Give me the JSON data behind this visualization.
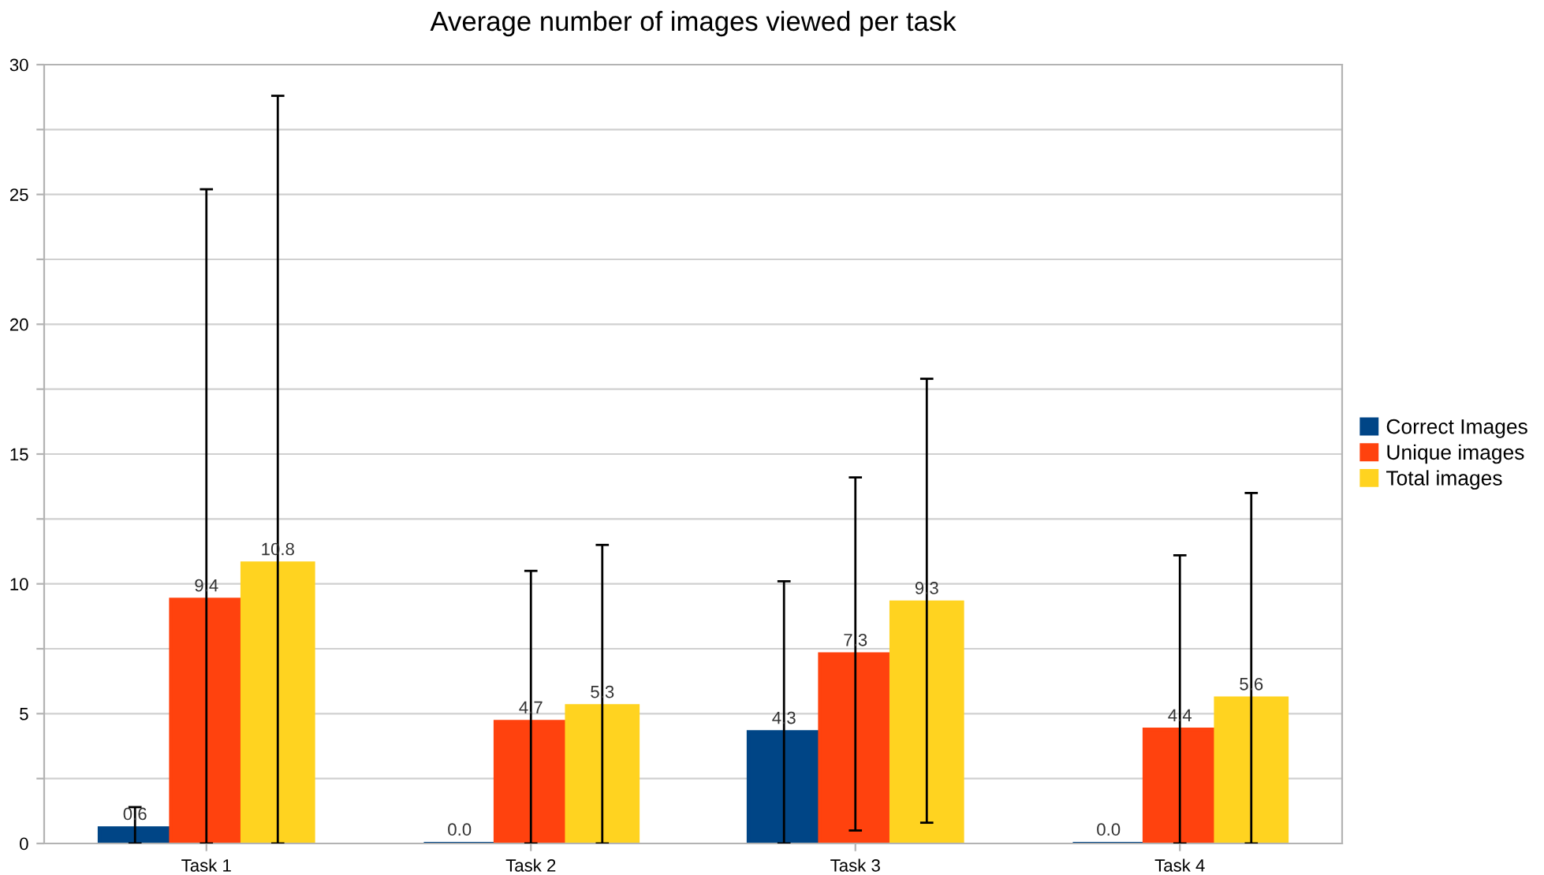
{
  "chart_data": {
    "type": "bar",
    "title": "Average number of images viewed per task",
    "categories": [
      "Task 1",
      "Task 2",
      "Task 3",
      "Task 4"
    ],
    "series": [
      {
        "name": "Correct Images",
        "color": "#004586",
        "values": [
          0.6,
          0.0,
          4.3,
          0.0
        ],
        "value_labels": [
          "0.6",
          "0.0",
          "4.3",
          "0.0"
        ],
        "errors": [
          [
            0,
            1.4
          ],
          null,
          [
            0,
            10.1
          ],
          null
        ]
      },
      {
        "name": "Unique images",
        "color": "#ff420e",
        "values": [
          9.4,
          4.7,
          7.3,
          4.4
        ],
        "value_labels": [
          "9.4",
          "4.7",
          "7.3",
          "4.4"
        ],
        "errors": [
          [
            0,
            25.2
          ],
          [
            0,
            10.5
          ],
          [
            0.5,
            14.1
          ],
          [
            0,
            11.1
          ]
        ]
      },
      {
        "name": "Total images",
        "color": "#ffd320",
        "values": [
          10.8,
          5.3,
          9.3,
          5.6
        ],
        "value_labels": [
          "10.8",
          "5.3",
          "9.3",
          "5.6"
        ],
        "errors": [
          [
            0,
            28.8
          ],
          [
            0,
            11.5
          ],
          [
            0.8,
            17.9
          ],
          [
            0,
            13.5
          ]
        ]
      }
    ],
    "ylim": [
      0,
      30
    ],
    "yticks": [
      0,
      {
        "value": 2.5,
        "label": null
      },
      5,
      {
        "value": 7.5,
        "label": null
      },
      10,
      {
        "value": 12.5,
        "label": null
      },
      15,
      {
        "value": 17.5,
        "label": null
      },
      20,
      {
        "value": 22.5,
        "label": null
      },
      25,
      {
        "value": 27.5,
        "label": null
      },
      30
    ],
    "grid": "y",
    "legend": "right"
  }
}
